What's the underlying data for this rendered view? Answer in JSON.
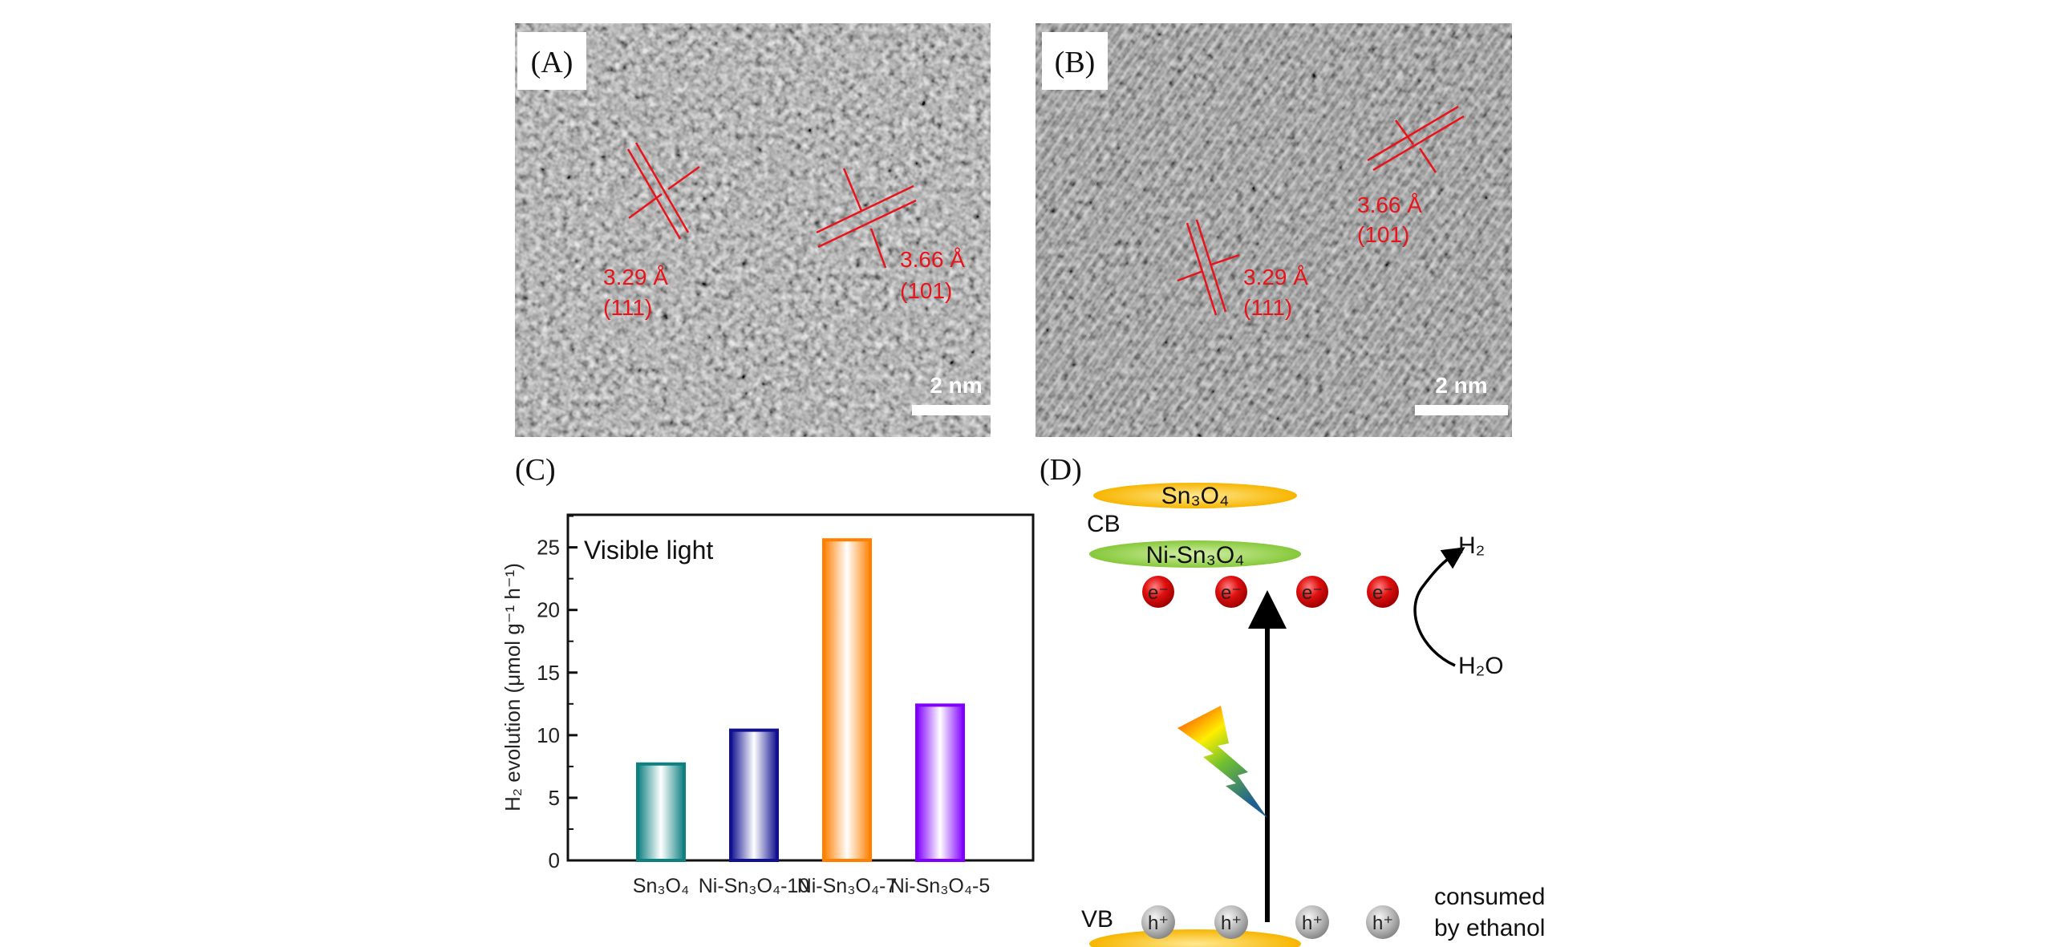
{
  "panels": {
    "a": {
      "label": "(A)",
      "annotations": [
        {
          "spacing": "3.29 Å",
          "plane": "(111)"
        },
        {
          "spacing": "3.66 Å",
          "plane": "(101)"
        }
      ],
      "scale_bar": "2 nm"
    },
    "b": {
      "label": "(B)",
      "annotations": [
        {
          "spacing": "3.66 Å",
          "plane": "(101)"
        },
        {
          "spacing": "3.29 Å",
          "plane": "(111)"
        }
      ],
      "scale_bar": "2 nm"
    },
    "c": {
      "label": "(C)"
    },
    "d": {
      "label": "(D)",
      "cb_label": "CB",
      "vb_label": "VB",
      "band_top": "Sn₃O₄",
      "band_mid": "Ni-Sn₃O₄",
      "electron": "e⁻",
      "hole": "h⁺",
      "product": "H₂",
      "reactant": "H₂O",
      "consumed_line1": "consumed",
      "consumed_line2": "by ethanol",
      "colors": {
        "sn3o4_band": "#f7b500",
        "ni_band": "#8ccc3c",
        "electron": "#e01010",
        "hole": "#b0b0b0"
      }
    }
  },
  "chart_data": {
    "type": "bar",
    "title": "",
    "annotation": "Visible light",
    "xlabel": "",
    "ylabel": "H₂ evolution (μmol g⁻¹ h⁻¹)",
    "ylim": [
      0,
      27.6
    ],
    "yticks": [
      "0",
      "5",
      "10",
      "15",
      "20",
      "25"
    ],
    "categories": [
      "Sn₃O₄",
      "Ni-Sn₃O₄-10",
      "Ni-Sn₃O₄-7",
      "Ni-Sn₃O₄-5"
    ],
    "values": [
      7.7,
      10.4,
      25.6,
      12.4
    ],
    "colors": [
      "#0f8080",
      "#101090",
      "#ff8000",
      "#8000ff"
    ],
    "grid": false
  }
}
